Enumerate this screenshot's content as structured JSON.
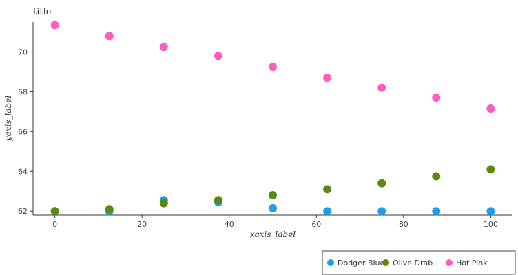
{
  "chart_data": {
    "type": "scatter",
    "title": "title",
    "xlabel": "xaxis_label",
    "ylabel": "yaxis_label",
    "xlim": [
      -5,
      105
    ],
    "ylim": [
      61.8,
      71.5
    ],
    "x_ticks": [
      0,
      20,
      40,
      60,
      80,
      100
    ],
    "x_tick_labels": [
      "0",
      "20",
      "40",
      "60",
      "80",
      "100"
    ],
    "y_ticks": [
      62,
      64,
      66,
      68,
      70
    ],
    "y_tick_labels": [
      "62",
      "64",
      "66",
      "68",
      "70"
    ],
    "grid": false,
    "legend_position": "bottom-right",
    "series": [
      {
        "name": "Dodger Blue",
        "color": "#1c9fe8",
        "x": [
          0,
          12.5,
          25,
          37.5,
          50,
          62.5,
          75,
          87.5,
          100
        ],
        "y": [
          62.0,
          62.0,
          62.55,
          62.45,
          62.15,
          62.0,
          62.0,
          62.0,
          62.0
        ]
      },
      {
        "name": "Olive Drab",
        "color": "#5a8a13",
        "x": [
          0,
          12.5,
          25,
          37.5,
          50,
          62.5,
          75,
          87.5,
          100
        ],
        "y": [
          62.0,
          62.1,
          62.4,
          62.55,
          62.8,
          63.1,
          63.4,
          63.75,
          64.1
        ]
      },
      {
        "name": "Hot Pink",
        "color": "#ff5cbf",
        "x": [
          0,
          12.5,
          25,
          37.5,
          50,
          62.5,
          75,
          87.5,
          100
        ],
        "y": [
          71.35,
          70.8,
          70.25,
          69.8,
          69.25,
          68.7,
          68.2,
          67.7,
          67.15
        ]
      }
    ]
  }
}
